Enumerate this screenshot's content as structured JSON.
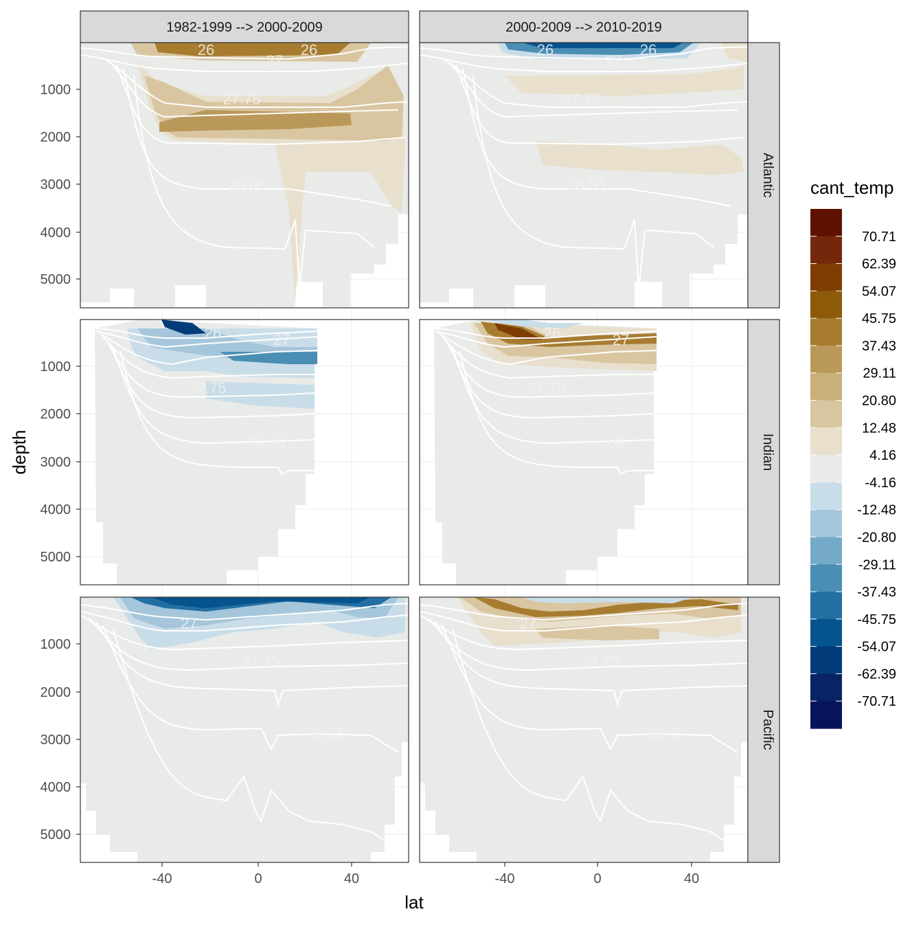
{
  "chart_data": {
    "type": "heatmap",
    "subtype": "faceted filled-contour depth sections",
    "xlabel": "lat",
    "ylabel": "depth",
    "x_ticks": [
      -40,
      0,
      40
    ],
    "x_tick_labels": [
      "-40",
      "0",
      "40"
    ],
    "xlim": [
      -75,
      62
    ],
    "y_ticks": [
      1000,
      2000,
      3000,
      4000,
      5000
    ],
    "y_tick_labels": [
      "1000",
      "2000",
      "3000",
      "4000",
      "5000"
    ],
    "ylim": [
      5600,
      0
    ],
    "y_reversed": true,
    "column_facets": [
      "1982-1999 --> 2000-2009",
      "2000-2009 --> 2010-2019"
    ],
    "row_facets": [
      "Atlantic",
      "Indian",
      "Pacific"
    ],
    "contour_labels": [
      "26",
      "27",
      "27.75",
      "28.05"
    ],
    "legend": {
      "title": "cant_temp",
      "breaks": [
        70.71,
        62.39,
        54.07,
        45.75,
        37.43,
        29.11,
        20.8,
        12.48,
        4.16,
        -4.16,
        -12.48,
        -20.8,
        -29.11,
        -37.43,
        -45.75,
        -54.07,
        -62.39,
        -70.71
      ],
      "labels": [
        "70.71",
        "62.39",
        "54.07",
        "45.75",
        "37.43",
        "29.11",
        "20.80",
        "12.48",
        "4.16",
        "-4.16",
        "-12.48",
        "-20.80",
        "-29.11",
        "-37.43",
        "-45.75",
        "-54.07",
        "-62.39",
        "-70.71"
      ],
      "colors": [
        "#5e1100",
        "#74280b",
        "#7e3e03",
        "#8c5a08",
        "#a77c30",
        "#b99859",
        "#c9af7a",
        "#d9c6a1",
        "#e8dfcd",
        "#e9ebe8",
        "#c9dde9",
        "#a5c6da",
        "#74a9c7",
        "#4a8eb4",
        "#236fa3",
        "#05548e",
        "#033c7a",
        "#082464",
        "#08145a"
      ]
    },
    "panels": [
      {
        "row": "Atlantic",
        "col": "1982-1999 --> 2000-2009",
        "lat_range": [
          -75,
          62
        ],
        "max_depth": 5600,
        "trend": "positive (brown) upper ocean and 1000-3000 m"
      },
      {
        "row": "Atlantic",
        "col": "2000-2009 --> 2010-2019",
        "lat_range": [
          -75,
          62
        ],
        "max_depth": 5600,
        "trend": "negative (blue) near surface, weak positive at depth"
      },
      {
        "row": "Indian",
        "col": "1982-1999 --> 2000-2009",
        "lat_range": [
          -70,
          25
        ],
        "max_depth": 5600,
        "trend": "negative (blue) in upper 1500 m"
      },
      {
        "row": "Indian",
        "col": "2000-2009 --> 2010-2019",
        "lat_range": [
          -70,
          25
        ],
        "max_depth": 5600,
        "trend": "positive (brown) in upper 1000 m"
      },
      {
        "row": "Pacific",
        "col": "1982-1999 --> 2000-2009",
        "lat_range": [
          -75,
          62
        ],
        "max_depth": 5600,
        "trend": "negative (blue) in upper 1000 m"
      },
      {
        "row": "Pacific",
        "col": "2000-2009 --> 2010-2019",
        "lat_range": [
          -75,
          62
        ],
        "max_depth": 5600,
        "trend": "positive (brown) in upper 1000 m"
      }
    ]
  }
}
